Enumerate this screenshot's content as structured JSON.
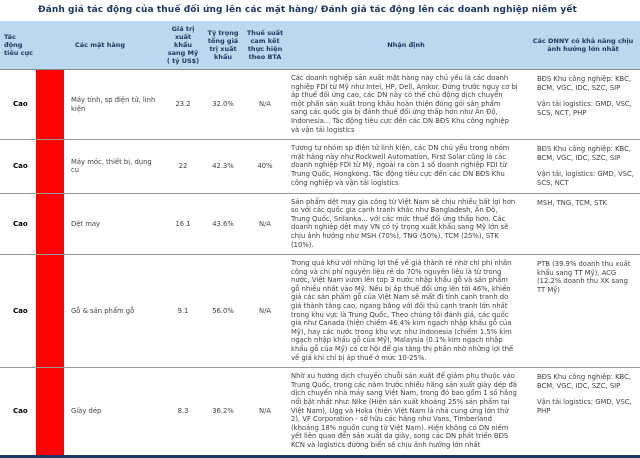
{
  "title": "Đánh giá tác động của thuế đối ứng lên các mặt hàng/ Đánh giá tác động lên các doanh nghiệp niêm yết",
  "colors": {
    "accent_red": "#FF0000",
    "header_bg": "#BDD7EE",
    "navy": "#1F3864"
  },
  "table": {
    "columns": [
      "Tác động tiêu cực",
      "Các mặt hàng",
      "Giá trị xuất khẩu sang Mỹ ( tỷ US$)",
      "Tỷ trọng tổng giá trị xuất khẩu",
      "Thuế suất cam kết thực hiện theo BTA",
      "Nhận định",
      "Các DNNY có khả năng chịu ảnh hưởng lớn nhất"
    ],
    "rows": [
      {
        "impact": "Cao",
        "item": "Máy tính, sp điện tử, linh kiện",
        "export_value_usd_bn": "23.2",
        "share_of_exports": "32.0%",
        "bta_tariff": "N/A",
        "assessment": "Các doanh nghiệp sản xuất mặt hàng này chủ yếu là các doanh nghiệp FDI từ Mỹ như Intel, HP, Dell, Amkor. Đứng trước nguy cơ bị áp thuế đối ứng cao, các DN này có thể chủ động dịch chuyển một phần sản xuất trong khâu hoàn thiện đóng gói sản phẩm sang các quốc gia bị đánh thuế đối ứng thấp hơn như Ấn Độ, Indonesia... Tác động tiêu cực đến các DN BĐS Khu công nghiệp và vận tải logistics",
        "companies": [
          "BĐS Khu công nghiệp: KBC, BCM, VGC, IDC, SZC, SIP",
          "Vận tải logistics: GMD, VSC, SCS, NCT, PHP"
        ]
      },
      {
        "impact": "Cao",
        "item": "Máy móc, thiết bị, dụng cụ",
        "export_value_usd_bn": "22",
        "share_of_exports": "42.3%",
        "bta_tariff": "40%",
        "assessment": "Tương tự nhóm sp điện tử linh kiện, các DN chủ yếu trong nhóm mặt hàng này như Rockwell Automation, First Solar cũng là các doanh nghiệp FDI từ Mỹ, ngoài ra còn 1 số doanh nghiệp FDI từ Trung Quốc, Hongkong. Tác động tiêu cực đến các DN BĐS Khu công nghiệp và vận tải logistics",
        "companies": [
          "BĐS Khu công nghiệp: KBC, BCM, VGC, IDC, SZC, SIP",
          "Vận tải, logistics: GMD, VSC, SCS, NCT"
        ]
      },
      {
        "impact": "Cao",
        "item": "Dệt may",
        "export_value_usd_bn": "16.1",
        "share_of_exports": "43.6%",
        "bta_tariff": "N/A",
        "assessment": "Sản phẩm dệt may gia công từ Việt Nam sẽ chịu nhiều bất lợi hơn so với các quốc gia cạnh tranh khác như Bangladesh, Ấn Độ, Trung Quốc, Srilanka... với các mức thuế đối ứng thấp hơn. Các doanh nghiệp dệt may VN có tỷ trọng xuất khẩu sang Mỹ lớn sẽ chịu ảnh hưởng như MSH (70%), TNG (50%), TCM (25%), STK (10%).",
        "companies": [
          "MSH, TNG, TCM, STK"
        ]
      },
      {
        "impact": "Cao",
        "item": "Gỗ & sản phẩm gỗ",
        "export_value_usd_bn": "9.1",
        "share_of_exports": "56.0%",
        "bta_tariff": "N/A",
        "assessment": "Trong quá khứ với những lợi thế về giá thành rẻ nhờ chi phí nhân công và chi phí nguyên liệu rẻ do 70% nguyên liệu là từ trong nước, Việt Nam vươn lên top 3 nước nhập khẩu gỗ và sản phẩm gỗ nhiều nhất vào Mỹ. Nếu bị áp thuế đối ứng lên tới 46%, khiến giá các sản phẩm gỗ của Việt Nam sẽ mất đi tính cạnh tranh do giá thành tăng cao, ngang bằng với đối thủ cạnh tranh lớn nhất trong khu vực là Trung Quốc, Theo chúng tôi đánh giá, các quốc gia như Canada (hiện chiếm 46.4% kim ngạch nhập khẩu gỗ của Mỹ), hay các nước trong khu vực như Indonesia (chiếm 1.5% kim ngạch nhập khẩu gỗ của Mỹ), Malaysia (0.1% kim ngạch nhập khẩu gỗ của Mỹ) có cơ hội để gia tăng thị phần nhờ những lợi thế về giá khi chỉ bị áp thuế ở mức 10-25%.",
        "companies": [
          "PTB (39.9% doanh thu xuất khẩu sang TT Mỹ), ACG (12.2% doanh thu XK sang TT Mỹ)"
        ]
      },
      {
        "impact": "Cao",
        "item": "Giày dép",
        "export_value_usd_bn": "8.3",
        "share_of_exports": "36.2%",
        "bta_tariff": "N/A",
        "assessment": "Nhờ xu hướng dịch chuyển chuỗi sản xuất để giảm phụ thuộc vào Trung Quốc, trong các năm trước nhiều hãng sản xuất giày dép đã dịch chuyển nhà máy sang Việt Nam, trong đó bao gồm 1 số hãng nổi bật nhất như: Nike (Hiện sản xuất khoảng 25% sản phẩm tại Việt Nam), Ugg và Hoka (hiện Việt Nam là nhà cung ứng lớn thứ 2), VF Corporation - sở hữu các hãng như Vans, Timberland (khoảng 18% nguồn cung từ Việt Nam). Hiện không có DN niêm yết liên quan đến sản xuất da giày, song các DN phát triển BĐS KCN và logistics đường biển sẽ chịu ảnh hưởng lớn nhất",
        "companies": [
          "BĐS Khu công nghiệp: KBC, BCM, VGC, IDC, SZC, SIP",
          "Vận tải logistics: GMD, VSC, PHP"
        ]
      }
    ]
  }
}
